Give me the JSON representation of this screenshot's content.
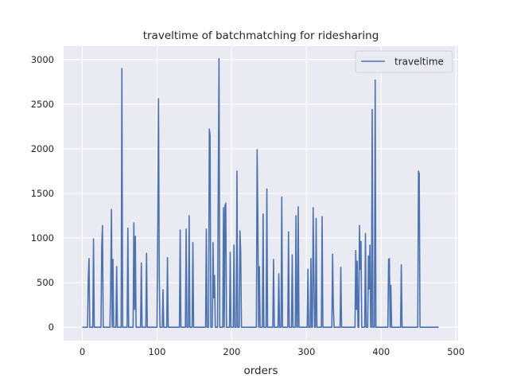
{
  "chart_data": {
    "type": "line",
    "title": "traveltime of batchmatching for ridesharing",
    "xlabel": "orders",
    "ylabel": "",
    "xlim": [
      -25,
      503
    ],
    "ylim": [
      -150,
      3150
    ],
    "xticks": [
      0,
      100,
      200,
      300,
      400,
      500
    ],
    "yticks": [
      0,
      500,
      1000,
      1500,
      2000,
      2500,
      3000
    ],
    "xtick_labels": [
      "0",
      "100",
      "200",
      "300",
      "400",
      "500"
    ],
    "ytick_labels": [
      "0",
      "500",
      "1000",
      "1500",
      "2000",
      "2500",
      "3000"
    ],
    "grid": true,
    "legend_position": "top-right",
    "colors": {
      "line": "#4c72b0",
      "background": "#eaeaf2",
      "grid": "#ffffff"
    },
    "series": [
      {
        "name": "traveltime",
        "points": [
          [
            0,
            0
          ],
          [
            7,
            0
          ],
          [
            8,
            550
          ],
          [
            9,
            770
          ],
          [
            10,
            0
          ],
          [
            14,
            0
          ],
          [
            15,
            990
          ],
          [
            16,
            0
          ],
          [
            25,
            0
          ],
          [
            26,
            900
          ],
          [
            27,
            1140
          ],
          [
            28,
            0
          ],
          [
            37,
            0
          ],
          [
            38,
            470
          ],
          [
            39,
            1320
          ],
          [
            40,
            0
          ],
          [
            41,
            760
          ],
          [
            42,
            0
          ],
          [
            45,
            0
          ],
          [
            46,
            680
          ],
          [
            47,
            0
          ],
          [
            52,
            0
          ],
          [
            53,
            2900
          ],
          [
            54,
            0
          ],
          [
            60,
            0
          ],
          [
            61,
            1110
          ],
          [
            62,
            0
          ],
          [
            68,
            0
          ],
          [
            69,
            1170
          ],
          [
            70,
            200
          ],
          [
            71,
            1020
          ],
          [
            72,
            0
          ],
          [
            78,
            0
          ],
          [
            79,
            720
          ],
          [
            80,
            0
          ],
          [
            85,
            0
          ],
          [
            86,
            830
          ],
          [
            87,
            0
          ],
          [
            100,
            0
          ],
          [
            101,
            1200
          ],
          [
            102,
            2560
          ],
          [
            103,
            600
          ],
          [
            104,
            0
          ],
          [
            107,
            0
          ],
          [
            108,
            420
          ],
          [
            109,
            0
          ],
          [
            113,
            0
          ],
          [
            114,
            780
          ],
          [
            115,
            0
          ],
          [
            130,
            0
          ],
          [
            131,
            1090
          ],
          [
            132,
            0
          ],
          [
            138,
            0
          ],
          [
            139,
            1100
          ],
          [
            140,
            0
          ],
          [
            142,
            0
          ],
          [
            143,
            1250
          ],
          [
            144,
            0
          ],
          [
            147,
            0
          ],
          [
            148,
            950
          ],
          [
            149,
            0
          ],
          [
            165,
            0
          ],
          [
            166,
            1100
          ],
          [
            167,
            0
          ],
          [
            169,
            0
          ],
          [
            170,
            2220
          ],
          [
            171,
            2150
          ],
          [
            172,
            0
          ],
          [
            174,
            0
          ],
          [
            175,
            950
          ],
          [
            176,
            330
          ],
          [
            177,
            580
          ],
          [
            178,
            0
          ],
          [
            181,
            0
          ],
          [
            182,
            1620
          ],
          [
            183,
            3010
          ],
          [
            184,
            0
          ],
          [
            188,
            0
          ],
          [
            189,
            1340
          ],
          [
            190,
            0
          ],
          [
            191,
            1360
          ],
          [
            192,
            1390
          ],
          [
            193,
            0
          ],
          [
            197,
            0
          ],
          [
            198,
            840
          ],
          [
            199,
            0
          ],
          [
            202,
            0
          ],
          [
            203,
            920
          ],
          [
            204,
            0
          ],
          [
            206,
            0
          ],
          [
            207,
            1750
          ],
          [
            208,
            0
          ],
          [
            210,
            0
          ],
          [
            211,
            1080
          ],
          [
            212,
            850
          ],
          [
            213,
            0
          ],
          [
            233,
            0
          ],
          [
            234,
            1990
          ],
          [
            235,
            1200
          ],
          [
            236,
            0
          ],
          [
            237,
            680
          ],
          [
            238,
            0
          ],
          [
            241,
            0
          ],
          [
            242,
            1270
          ],
          [
            243,
            0
          ],
          [
            246,
            0
          ],
          [
            247,
            1550
          ],
          [
            248,
            0
          ],
          [
            255,
            0
          ],
          [
            256,
            760
          ],
          [
            257,
            0
          ],
          [
            262,
            0
          ],
          [
            263,
            600
          ],
          [
            264,
            0
          ],
          [
            266,
            0
          ],
          [
            267,
            1460
          ],
          [
            268,
            0
          ],
          [
            275,
            0
          ],
          [
            276,
            1070
          ],
          [
            277,
            0
          ],
          [
            280,
            0
          ],
          [
            281,
            810
          ],
          [
            282,
            0
          ],
          [
            285,
            0
          ],
          [
            286,
            1250
          ],
          [
            287,
            0
          ],
          [
            288,
            0
          ],
          [
            289,
            1350
          ],
          [
            290,
            0
          ],
          [
            301,
            0
          ],
          [
            302,
            650
          ],
          [
            303,
            0
          ],
          [
            305,
            0
          ],
          [
            306,
            770
          ],
          [
            307,
            0
          ],
          [
            308,
            0
          ],
          [
            309,
            1340
          ],
          [
            310,
            560
          ],
          [
            311,
            0
          ],
          [
            312,
            0
          ],
          [
            313,
            1220
          ],
          [
            314,
            0
          ],
          [
            320,
            0
          ],
          [
            321,
            1240
          ],
          [
            322,
            0
          ],
          [
            334,
            0
          ],
          [
            335,
            820
          ],
          [
            336,
            230
          ],
          [
            337,
            0
          ],
          [
            345,
            0
          ],
          [
            346,
            670
          ],
          [
            347,
            0
          ],
          [
            365,
            0
          ],
          [
            366,
            860
          ],
          [
            367,
            200
          ],
          [
            368,
            740
          ],
          [
            369,
            0
          ],
          [
            370,
            0
          ],
          [
            371,
            1140
          ],
          [
            372,
            650
          ],
          [
            373,
            960
          ],
          [
            374,
            0
          ],
          [
            378,
            0
          ],
          [
            379,
            1050
          ],
          [
            380,
            0
          ],
          [
            382,
            0
          ],
          [
            383,
            800
          ],
          [
            384,
            430
          ],
          [
            385,
            920
          ],
          [
            386,
            0
          ],
          [
            387,
            0
          ],
          [
            388,
            2440
          ],
          [
            389,
            0
          ],
          [
            391,
            0
          ],
          [
            392,
            2770
          ],
          [
            393,
            0
          ],
          [
            409,
            0
          ],
          [
            410,
            760
          ],
          [
            411,
            770
          ],
          [
            412,
            0
          ],
          [
            413,
            470
          ],
          [
            414,
            0
          ],
          [
            426,
            0
          ],
          [
            427,
            700
          ],
          [
            428,
            0
          ],
          [
            449,
            0
          ],
          [
            450,
            1750
          ],
          [
            451,
            1720
          ],
          [
            452,
            0
          ],
          [
            477,
            0
          ]
        ]
      }
    ]
  }
}
